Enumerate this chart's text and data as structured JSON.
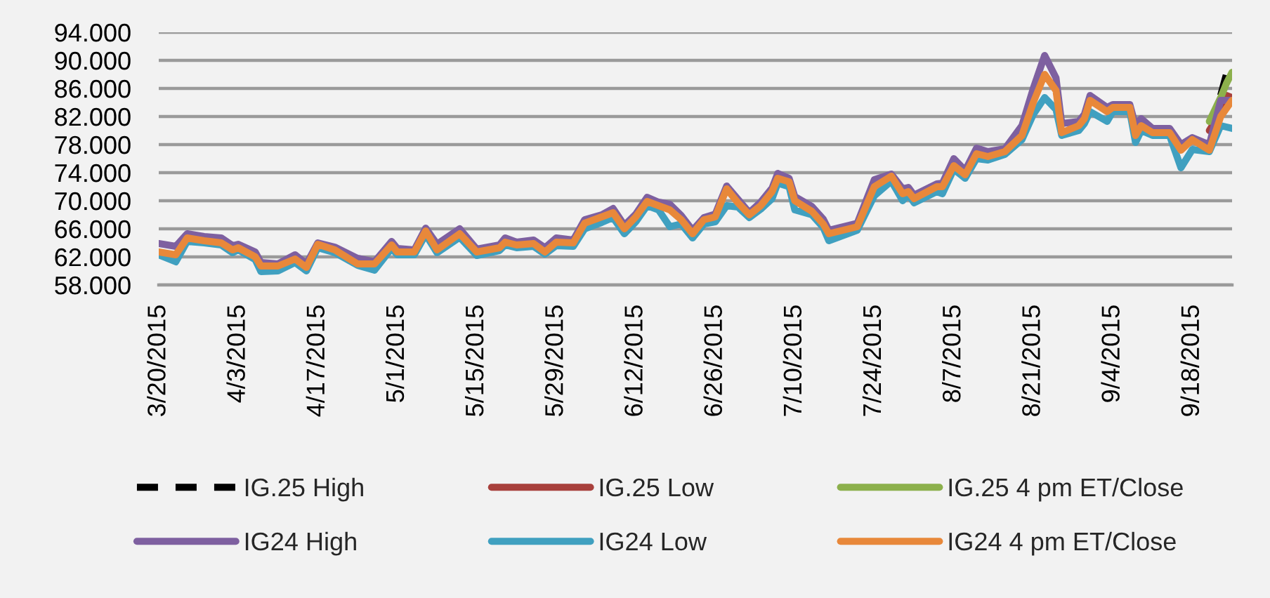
{
  "chart_data": {
    "type": "line",
    "line_style": "solid",
    "grid": "y",
    "legend": "bottom",
    "xlim": [
      "2015-03-20",
      "2015-09-25"
    ],
    "ylim": [
      58,
      94
    ],
    "yticks": [
      {
        "value": 58,
        "label": "58.000"
      },
      {
        "value": 62,
        "label": "62.000"
      },
      {
        "value": 66,
        "label": "66.000"
      },
      {
        "value": 70,
        "label": "70.000"
      },
      {
        "value": 74,
        "label": "74.000"
      },
      {
        "value": 78,
        "label": "78.000"
      },
      {
        "value": 82,
        "label": "82.000"
      },
      {
        "value": 86,
        "label": "86.000"
      },
      {
        "value": 90,
        "label": "90.000"
      },
      {
        "value": 94,
        "label": "94.000"
      }
    ],
    "xticks": [
      {
        "value": "2015-03-20",
        "label": "3/20/2015"
      },
      {
        "value": "2015-04-03",
        "label": "4/3/2015"
      },
      {
        "value": "2015-04-17",
        "label": "4/17/2015"
      },
      {
        "value": "2015-05-01",
        "label": "5/1/2015"
      },
      {
        "value": "2015-05-15",
        "label": "5/15/2015"
      },
      {
        "value": "2015-05-29",
        "label": "5/29/2015"
      },
      {
        "value": "2015-06-12",
        "label": "6/12/2015"
      },
      {
        "value": "2015-06-26",
        "label": "6/26/2015"
      },
      {
        "value": "2015-07-10",
        "label": "7/10/2015"
      },
      {
        "value": "2015-07-24",
        "label": "7/24/2015"
      },
      {
        "value": "2015-08-07",
        "label": "8/7/2015"
      },
      {
        "value": "2015-08-21",
        "label": "8/21/2015"
      },
      {
        "value": "2015-09-04",
        "label": "9/4/2015"
      },
      {
        "value": "2015-09-18",
        "label": "9/18/2015"
      }
    ],
    "x": [
      "2015-03-20",
      "2015-03-23",
      "2015-03-25",
      "2015-03-28",
      "2015-03-31",
      "2015-04-02",
      "2015-04-03",
      "2015-04-06",
      "2015-04-07",
      "2015-04-10",
      "2015-04-13",
      "2015-04-15",
      "2015-04-17",
      "2015-04-20",
      "2015-04-24",
      "2015-04-27",
      "2015-04-30",
      "2015-05-01",
      "2015-05-04",
      "2015-05-06",
      "2015-05-08",
      "2015-05-12",
      "2015-05-15",
      "2015-05-19",
      "2015-05-20",
      "2015-05-22",
      "2015-05-25",
      "2015-05-27",
      "2015-05-29",
      "2015-06-01",
      "2015-06-03",
      "2015-06-06",
      "2015-06-08",
      "2015-06-10",
      "2015-06-12",
      "2015-06-14",
      "2015-06-16",
      "2015-06-18",
      "2015-06-20",
      "2015-06-22",
      "2015-06-24",
      "2015-06-26",
      "2015-06-28",
      "2015-06-30",
      "2015-07-02",
      "2015-07-04",
      "2015-07-06",
      "2015-07-07",
      "2015-07-09",
      "2015-07-10",
      "2015-07-13",
      "2015-07-15",
      "2015-07-16",
      "2015-07-21",
      "2015-07-24",
      "2015-07-27",
      "2015-07-29",
      "2015-07-30",
      "2015-07-31",
      "2015-08-04",
      "2015-08-05",
      "2015-08-07",
      "2015-08-09",
      "2015-08-11",
      "2015-08-13",
      "2015-08-16",
      "2015-08-19",
      "2015-08-21",
      "2015-08-23",
      "2015-08-25",
      "2015-08-26",
      "2015-08-29",
      "2015-08-30",
      "2015-08-31",
      "2015-09-03",
      "2015-09-04",
      "2015-09-07",
      "2015-09-08",
      "2015-09-09",
      "2015-09-11",
      "2015-09-14",
      "2015-09-16",
      "2015-09-18",
      "2015-09-21",
      "2015-09-23",
      "2015-09-25"
    ],
    "series": [
      {
        "name": "IG.25 High",
        "color": "#000000",
        "line_style": "dashed",
        "x": [
          "2015-09-23",
          "2015-09-24",
          "2015-09-25"
        ],
        "values": [
          85.0,
          88.0,
          88.6
        ]
      },
      {
        "name": "IG.25 Low",
        "color": "#a8403c",
        "x": [
          "2015-09-21",
          "2015-09-22",
          "2015-09-23",
          "2015-09-24",
          "2015-09-25"
        ],
        "values": [
          80.0,
          81.3,
          82.3,
          85.0,
          84.7
        ]
      },
      {
        "name": "IG.25 4 pm ET/Close",
        "color": "#8cb04c",
        "x": [
          "2015-09-21",
          "2015-09-22",
          "2015-09-23",
          "2015-09-24",
          "2015-09-25"
        ],
        "values": [
          81.3,
          83.0,
          84.7,
          86.7,
          88.3
        ]
      },
      {
        "name": "IG24 High",
        "color": "#7e60a0",
        "values": [
          63.9,
          63.5,
          65.3,
          64.9,
          64.7,
          63.6,
          63.8,
          62.7,
          61.2,
          61.0,
          62.3,
          61.0,
          64.0,
          63.4,
          61.8,
          61.3,
          64.2,
          63.2,
          63.0,
          66.1,
          63.8,
          66.0,
          63.1,
          63.7,
          64.7,
          64.1,
          64.4,
          63.3,
          64.7,
          64.4,
          67.3,
          68.0,
          68.9,
          66.5,
          68.1,
          70.5,
          69.8,
          69.5,
          67.9,
          65.8,
          67.6,
          68.1,
          72.1,
          70.2,
          68.3,
          69.8,
          71.8,
          73.9,
          73.2,
          70.6,
          69.2,
          67.4,
          65.8,
          66.8,
          73.0,
          73.8,
          71.7,
          71.9,
          70.8,
          72.4,
          72.5,
          76.0,
          74.3,
          77.5,
          77.0,
          77.4,
          80.7,
          86.0,
          90.7,
          87.5,
          81.0,
          81.3,
          82.3,
          85.0,
          83.3,
          83.7,
          83.7,
          80.7,
          81.7,
          80.3,
          80.3,
          78.0,
          79.0,
          78.0,
          84.3,
          84.3
        ]
      },
      {
        "name": "IG24 Low",
        "color": "#40a0c0",
        "values": [
          62.3,
          61.3,
          64.2,
          64.0,
          63.7,
          62.6,
          63.0,
          61.6,
          59.9,
          60.0,
          61.2,
          60.0,
          63.3,
          62.6,
          60.8,
          60.1,
          63.2,
          62.3,
          62.3,
          65.2,
          62.6,
          64.8,
          62.2,
          62.9,
          63.7,
          63.3,
          63.5,
          62.4,
          63.6,
          63.5,
          66.0,
          66.9,
          67.6,
          65.3,
          67.0,
          69.3,
          68.7,
          66.3,
          66.7,
          64.7,
          66.7,
          67.0,
          69.3,
          69.1,
          67.6,
          68.8,
          70.3,
          72.5,
          72.0,
          68.7,
          68.0,
          66.2,
          64.3,
          65.8,
          70.7,
          72.8,
          70.0,
          70.9,
          69.7,
          71.3,
          71.0,
          74.5,
          73.2,
          76.0,
          75.8,
          76.6,
          78.7,
          82.3,
          84.7,
          83.0,
          79.3,
          80.0,
          81.0,
          82.7,
          81.3,
          82.7,
          82.7,
          78.3,
          80.0,
          79.3,
          79.3,
          74.7,
          77.3,
          77.0,
          80.7,
          80.3
        ]
      },
      {
        "name": "IG24 4 pm ET/Close",
        "color": "#e8883a",
        "values": [
          62.7,
          62.3,
          64.7,
          64.3,
          64.0,
          63.0,
          63.3,
          62.0,
          60.7,
          60.7,
          61.7,
          60.5,
          63.8,
          63.0,
          61.0,
          61.0,
          63.7,
          62.7,
          62.7,
          65.7,
          63.0,
          65.3,
          62.7,
          63.3,
          64.1,
          63.7,
          63.9,
          62.7,
          64.1,
          64.0,
          66.8,
          67.7,
          68.3,
          66.0,
          67.7,
          69.9,
          69.3,
          68.7,
          67.3,
          65.3,
          67.3,
          67.7,
          71.7,
          69.7,
          68.0,
          69.3,
          71.3,
          73.2,
          72.7,
          70.0,
          68.5,
          66.7,
          65.3,
          66.3,
          72.0,
          73.5,
          71.0,
          71.3,
          70.3,
          72.0,
          72.0,
          75.0,
          73.7,
          76.7,
          76.3,
          77.0,
          79.3,
          84.0,
          88.0,
          85.7,
          79.7,
          80.7,
          81.7,
          84.3,
          82.7,
          83.3,
          83.3,
          79.3,
          80.7,
          79.7,
          79.7,
          77.2,
          78.7,
          77.2,
          82.0,
          84.3
        ]
      }
    ]
  }
}
